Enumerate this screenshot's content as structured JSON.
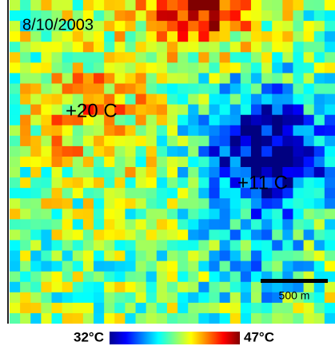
{
  "map": {
    "date": "8/10/2003",
    "annotations": [
      "+20 C",
      "+11 C"
    ],
    "scale_bar": "500 m"
  },
  "colorbar": {
    "min_label": "32°C",
    "max_label": "47°C"
  }
}
